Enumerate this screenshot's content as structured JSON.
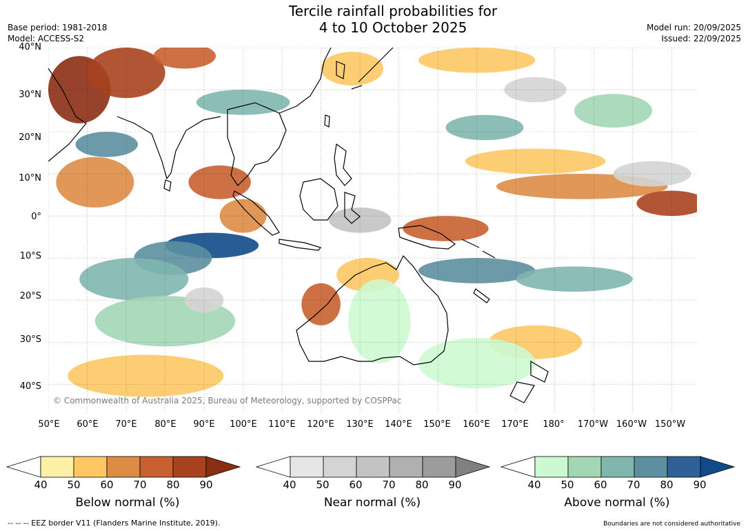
{
  "header": {
    "title_line1": "Tercile rainfall probabilities for",
    "title_line2": "4 to 10 October 2025",
    "base_period": "Base period: 1981-2018",
    "model": "Model: ACCESS-S2",
    "model_run": "Model run: 20/09/2025",
    "issued": "Issued: 22/09/2025"
  },
  "map": {
    "lat_labels": [
      "40°N",
      "30°N",
      "20°N",
      "10°N",
      "0°",
      "10°S",
      "20°S",
      "30°S",
      "40°S"
    ],
    "lon_labels": [
      "50°E",
      "60°E",
      "70°E",
      "80°E",
      "90°E",
      "100°E",
      "110°E",
      "120°E",
      "130°E",
      "140°E",
      "150°E",
      "160°E",
      "170°E",
      "180°",
      "170°W",
      "160°W",
      "150°W"
    ],
    "copyright": "© Commonwealth of Australia 2025, Bureau of Meteorology, supported by COSPPac",
    "regions": [
      {
        "category": "below",
        "level": 90,
        "lon": 58,
        "lat": 30,
        "rlon": 8,
        "rlat": 8
      },
      {
        "category": "below",
        "level": 80,
        "lon": 70,
        "lat": 34,
        "rlon": 10,
        "rlat": 6
      },
      {
        "category": "below",
        "level": 70,
        "lon": 85,
        "lat": 38,
        "rlon": 8,
        "rlat": 3
      },
      {
        "category": "below",
        "level": 60,
        "lon": 62,
        "lat": 8,
        "rlon": 10,
        "rlat": 6
      },
      {
        "category": "below",
        "level": 70,
        "lon": 94,
        "lat": 8,
        "rlon": 8,
        "rlat": 4
      },
      {
        "category": "below",
        "level": 60,
        "lon": 100,
        "lat": 0,
        "rlon": 6,
        "rlat": 4
      },
      {
        "category": "below",
        "level": 70,
        "lon": 120,
        "lat": -21,
        "rlon": 5,
        "rlat": 5
      },
      {
        "category": "below",
        "level": 50,
        "lon": 132,
        "lat": -14,
        "rlon": 8,
        "rlat": 4
      },
      {
        "category": "below",
        "level": 70,
        "lon": 152,
        "lat": -3,
        "rlon": 11,
        "rlat": 3
      },
      {
        "category": "below",
        "level": 60,
        "lon": 187,
        "lat": 7,
        "rlon": 22,
        "rlat": 3
      },
      {
        "category": "below",
        "level": 80,
        "lon": 210,
        "lat": 3,
        "rlon": 9,
        "rlat": 3
      },
      {
        "category": "below",
        "level": 50,
        "lon": 175,
        "lat": 13,
        "rlon": 18,
        "rlat": 3
      },
      {
        "category": "below",
        "level": 50,
        "lon": 75,
        "lat": -38,
        "rlon": 20,
        "rlat": 5
      },
      {
        "category": "below",
        "level": 50,
        "lon": 128,
        "lat": 35,
        "rlon": 8,
        "rlat": 4
      },
      {
        "category": "below",
        "level": 50,
        "lon": 160,
        "lat": 37,
        "rlon": 15,
        "rlat": 3
      },
      {
        "category": "below",
        "level": 50,
        "lon": 175,
        "lat": -30,
        "rlon": 12,
        "rlat": 4
      },
      {
        "category": "above",
        "level": 90,
        "lon": 92,
        "lat": -7,
        "rlon": 12,
        "rlat": 3
      },
      {
        "category": "above",
        "level": 70,
        "lon": 82,
        "lat": -10,
        "rlon": 10,
        "rlat": 4
      },
      {
        "category": "above",
        "level": 60,
        "lon": 72,
        "lat": -15,
        "rlon": 14,
        "rlat": 5
      },
      {
        "category": "above",
        "level": 70,
        "lon": 65,
        "lat": 17,
        "rlon": 8,
        "rlat": 3
      },
      {
        "category": "above",
        "level": 60,
        "lon": 100,
        "lat": 27,
        "rlon": 12,
        "rlat": 3
      },
      {
        "category": "above",
        "level": 70,
        "lon": 160,
        "lat": -13,
        "rlon": 15,
        "rlat": 3
      },
      {
        "category": "above",
        "level": 60,
        "lon": 185,
        "lat": -15,
        "rlon": 15,
        "rlat": 3
      },
      {
        "category": "above",
        "level": 60,
        "lon": 162,
        "lat": 21,
        "rlon": 10,
        "rlat": 3
      },
      {
        "category": "above",
        "level": 50,
        "lon": 195,
        "lat": 25,
        "rlon": 10,
        "rlat": 4
      },
      {
        "category": "above",
        "level": 50,
        "lon": 80,
        "lat": -25,
        "rlon": 18,
        "rlat": 6
      },
      {
        "category": "above",
        "level": 40,
        "lon": 135,
        "lat": -25,
        "rlon": 8,
        "rlat": 10
      },
      {
        "category": "above",
        "level": 40,
        "lon": 160,
        "lat": -35,
        "rlon": 15,
        "rlat": 6
      },
      {
        "category": "near",
        "level": 60,
        "lon": 130,
        "lat": -1,
        "rlon": 8,
        "rlat": 3
      },
      {
        "category": "near",
        "level": 50,
        "lon": 205,
        "lat": 10,
        "rlon": 10,
        "rlat": 3
      },
      {
        "category": "near",
        "level": 50,
        "lon": 90,
        "lat": -20,
        "rlon": 5,
        "rlat": 3
      },
      {
        "category": "near",
        "level": 50,
        "lon": 175,
        "lat": 30,
        "rlon": 8,
        "rlat": 3
      }
    ]
  },
  "colorbars": [
    {
      "title": "Below normal (%)",
      "ticks": [
        "40",
        "50",
        "60",
        "70",
        "80",
        "90"
      ],
      "colors": [
        "#fff0a8",
        "#fdc864",
        "#dd8c46",
        "#c8602f",
        "#a8421f"
      ],
      "over": "#8c2e14"
    },
    {
      "title": "Near normal (%)",
      "ticks": [
        "40",
        "50",
        "60",
        "70",
        "80",
        "90"
      ],
      "colors": [
        "#e6e6e6",
        "#d4d4d4",
        "#c3c3c3",
        "#b0b0b0",
        "#9c9c9c"
      ],
      "over": "#808080"
    },
    {
      "title": "Above normal (%)",
      "ticks": [
        "40",
        "50",
        "60",
        "70",
        "80",
        "90"
      ],
      "colors": [
        "#ccf9d0",
        "#a3d6b5",
        "#7fb6ae",
        "#5c8fa0",
        "#2f6096"
      ],
      "over": "#104a88"
    }
  ],
  "footer": {
    "eez_note": "--  --  -- EEZ border V11 (Flanders Marine Institute, 2019).",
    "disclaimer": "Boundaries are not considered authoritative"
  },
  "palette": {
    "below": {
      "40": "#fff0a8",
      "50": "#fdc864",
      "60": "#dd8c46",
      "70": "#c8602f",
      "80": "#a8421f",
      "90": "#8c2e14"
    },
    "near": {
      "40": "#e6e6e6",
      "50": "#d4d4d4",
      "60": "#c3c3c3",
      "70": "#b0b0b0",
      "80": "#9c9c9c",
      "90": "#808080"
    },
    "above": {
      "40": "#ccf9d0",
      "50": "#a3d6b5",
      "60": "#7fb6ae",
      "70": "#5c8fa0",
      "80": "#2f6096",
      "90": "#104a88"
    }
  }
}
